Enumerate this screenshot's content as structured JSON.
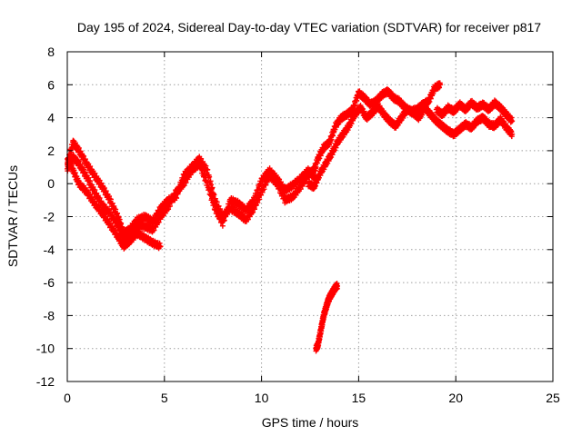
{
  "chart_data": {
    "type": "scatter",
    "title": "Day 195 of 2024, Sidereal Day-to-day VTEC variation (SDTVAR) for receiver p817",
    "xlabel": "GPS time / hours",
    "ylabel": "SDTVAR / TECUs",
    "xlim": [
      0,
      25
    ],
    "ylim": [
      -12,
      8
    ],
    "xticks": [
      "0",
      "5",
      "10",
      "15",
      "20",
      "25"
    ],
    "yticks": [
      "-12",
      "-10",
      "-8",
      "-6",
      "-4",
      "-2",
      "0",
      "2",
      "4",
      "6",
      "8"
    ],
    "grid": true,
    "marker": "plus",
    "color": "#ff0000",
    "series": [
      {
        "name": "track-a",
        "x": [
          0.0,
          0.3,
          0.6,
          1.0,
          1.4,
          1.8,
          2.2,
          2.6,
          2.9,
          3.2,
          3.6,
          4.0,
          4.4,
          4.8
        ],
        "y": [
          1.5,
          0.8,
          0.0,
          -0.5,
          -1.2,
          -1.8,
          -2.5,
          -3.2,
          -3.8,
          -3.5,
          -3.0,
          -3.3,
          -3.6,
          -3.8
        ]
      },
      {
        "name": "track-b",
        "x": [
          0.0,
          0.3,
          0.6,
          1.0,
          1.4,
          1.8,
          2.2,
          2.6,
          2.9,
          3.2,
          3.6,
          4.0,
          4.4,
          4.8,
          5.2,
          5.6,
          6.0,
          6.4,
          6.8,
          7.2,
          7.6,
          8.0,
          8.4,
          8.8,
          9.2,
          9.6,
          10.0,
          10.4,
          10.8,
          11.2,
          11.6,
          12.0,
          12.4,
          12.8
        ],
        "y": [
          1.2,
          2.5,
          2.0,
          1.2,
          0.5,
          -0.2,
          -1.0,
          -2.0,
          -3.0,
          -2.8,
          -2.2,
          -2.0,
          -2.3,
          -1.5,
          -1.0,
          -0.8,
          0.5,
          1.0,
          1.5,
          0.8,
          -1.0,
          -2.0,
          -1.5,
          -1.8,
          -2.2,
          -1.5,
          -0.5,
          0.5,
          0.0,
          -1.0,
          -0.8,
          -0.2,
          0.5,
          1.0
        ]
      },
      {
        "name": "track-c",
        "x": [
          0.0,
          0.3,
          0.6,
          1.0,
          1.4,
          1.8,
          2.2,
          2.6,
          2.9,
          3.2,
          3.6,
          4.0,
          4.4,
          4.8,
          5.2,
          5.6,
          6.0,
          6.4,
          6.8,
          7.2,
          7.6,
          8.0,
          8.4,
          8.8,
          9.2,
          9.6,
          10.0,
          10.4,
          10.8,
          11.2,
          11.6,
          12.0,
          12.4,
          12.8
        ],
        "y": [
          0.9,
          1.6,
          1.2,
          0.4,
          -0.5,
          -1.3,
          -1.8,
          -2.5,
          -3.3,
          -3.2,
          -2.5,
          -2.6,
          -2.8,
          -2.0,
          -1.4,
          -0.5,
          0.0,
          0.8,
          1.2,
          0.0,
          -1.5,
          -2.4,
          -1.0,
          -1.2,
          -1.6,
          -1.0,
          0.2,
          0.8,
          0.3,
          -0.4,
          -0.1,
          0.3,
          0.8,
          0.3
        ]
      },
      {
        "name": "track-d",
        "x": [
          12.6,
          12.9,
          13.2,
          13.5,
          13.8,
          14.1,
          14.4,
          14.7,
          15.0,
          15.3,
          15.6,
          15.9,
          16.2,
          16.5,
          16.8,
          17.1,
          17.4,
          17.7,
          18.0,
          18.3,
          18.6,
          18.9,
          19.2
        ],
        "y": [
          0.5,
          1.5,
          2.2,
          2.5,
          3.5,
          4.0,
          4.2,
          4.5,
          5.5,
          5.2,
          4.8,
          5.0,
          5.4,
          5.6,
          5.2,
          5.0,
          4.6,
          4.4,
          4.5,
          4.8,
          5.0,
          5.8,
          6.0
        ]
      },
      {
        "name": "track-e",
        "x": [
          12.4,
          12.7,
          13.0,
          13.3,
          13.6,
          13.9,
          14.2,
          14.5,
          14.8,
          15.1,
          15.4,
          15.7,
          16.0,
          16.3,
          16.6,
          16.9,
          17.2,
          17.5,
          17.8,
          18.1,
          18.4,
          18.7,
          19.0,
          19.3,
          19.6,
          19.9,
          20.2,
          20.5,
          20.8,
          21.1,
          21.4,
          21.7,
          22.0,
          22.3,
          22.6,
          22.9
        ],
        "y": [
          0.0,
          -0.2,
          0.6,
          1.2,
          1.8,
          2.5,
          3.0,
          3.5,
          4.2,
          4.6,
          4.0,
          4.3,
          4.7,
          4.2,
          3.8,
          3.5,
          4.0,
          4.5,
          4.3,
          4.0,
          4.6,
          4.2,
          3.8,
          3.5,
          3.2,
          3.0,
          3.3,
          3.6,
          3.4,
          3.8,
          4.0,
          3.6,
          3.5,
          3.9,
          3.4,
          3.0
        ]
      },
      {
        "name": "track-f",
        "x": [
          19.0,
          19.3,
          19.6,
          19.9,
          20.2,
          20.5,
          20.8,
          21.1,
          21.4,
          21.7,
          22.0,
          22.3,
          22.6,
          22.9
        ],
        "y": [
          4.5,
          4.2,
          4.6,
          4.4,
          4.8,
          4.5,
          4.9,
          4.6,
          4.8,
          4.5,
          4.9,
          4.6,
          4.2,
          3.8
        ]
      },
      {
        "name": "track-g",
        "x": [
          12.8,
          12.9,
          13.0,
          13.1,
          13.2,
          13.3,
          13.4,
          13.5,
          13.6,
          13.7,
          13.8,
          13.9
        ],
        "y": [
          -10.0,
          -9.8,
          -9.2,
          -8.6,
          -8.0,
          -7.6,
          -7.2,
          -6.9,
          -6.7,
          -6.5,
          -6.3,
          -6.2
        ]
      }
    ]
  }
}
